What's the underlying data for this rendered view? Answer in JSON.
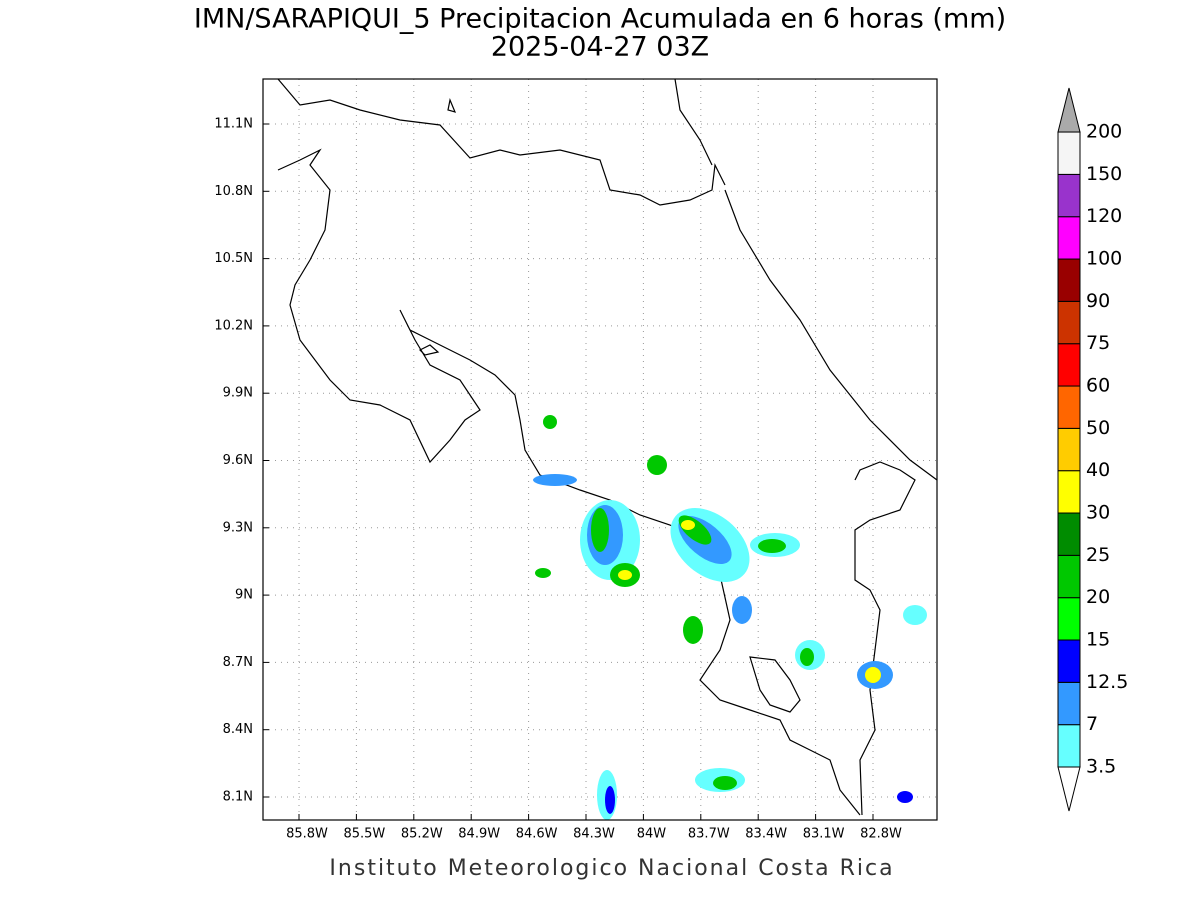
{
  "title": "IMN/SARAPIQUI_5 Precipitacion Acumulada en 6 horas (mm)",
  "subtitle": "2025-04-27 03Z",
  "map": {
    "lon_labels": [
      "85.8W",
      "85.5W",
      "85.2W",
      "84.9W",
      "84.6W",
      "84.3W",
      "84W",
      "83.7W",
      "83.4W",
      "83.1W",
      "82.8W"
    ],
    "lat_labels": [
      "11.1N",
      "10.8N",
      "10.5N",
      "10.2N",
      "9.9N",
      "9.6N",
      "9.3N",
      "9N",
      "8.7N",
      "8.4N",
      "8.1N"
    ]
  },
  "colorbar": {
    "labels": [
      "3.5",
      "7",
      "12.5",
      "15",
      "20",
      "25",
      "30",
      "40",
      "50",
      "60",
      "75",
      "90",
      "100",
      "120",
      "150",
      "200"
    ],
    "colors": [
      "#66ffff",
      "#3399ff",
      "#0000ff",
      "#00ff00",
      "#00c800",
      "#008c00",
      "#ffff00",
      "#ffcc00",
      "#ff6600",
      "#ff0000",
      "#cc3300",
      "#990000",
      "#ff00ff",
      "#9933cc",
      "#f5f5f5"
    ],
    "over_color": "#aaaaaa",
    "under_color": "#ffffff"
  },
  "footer": "Instituto Meteorologico Nacional Costa Rica"
}
